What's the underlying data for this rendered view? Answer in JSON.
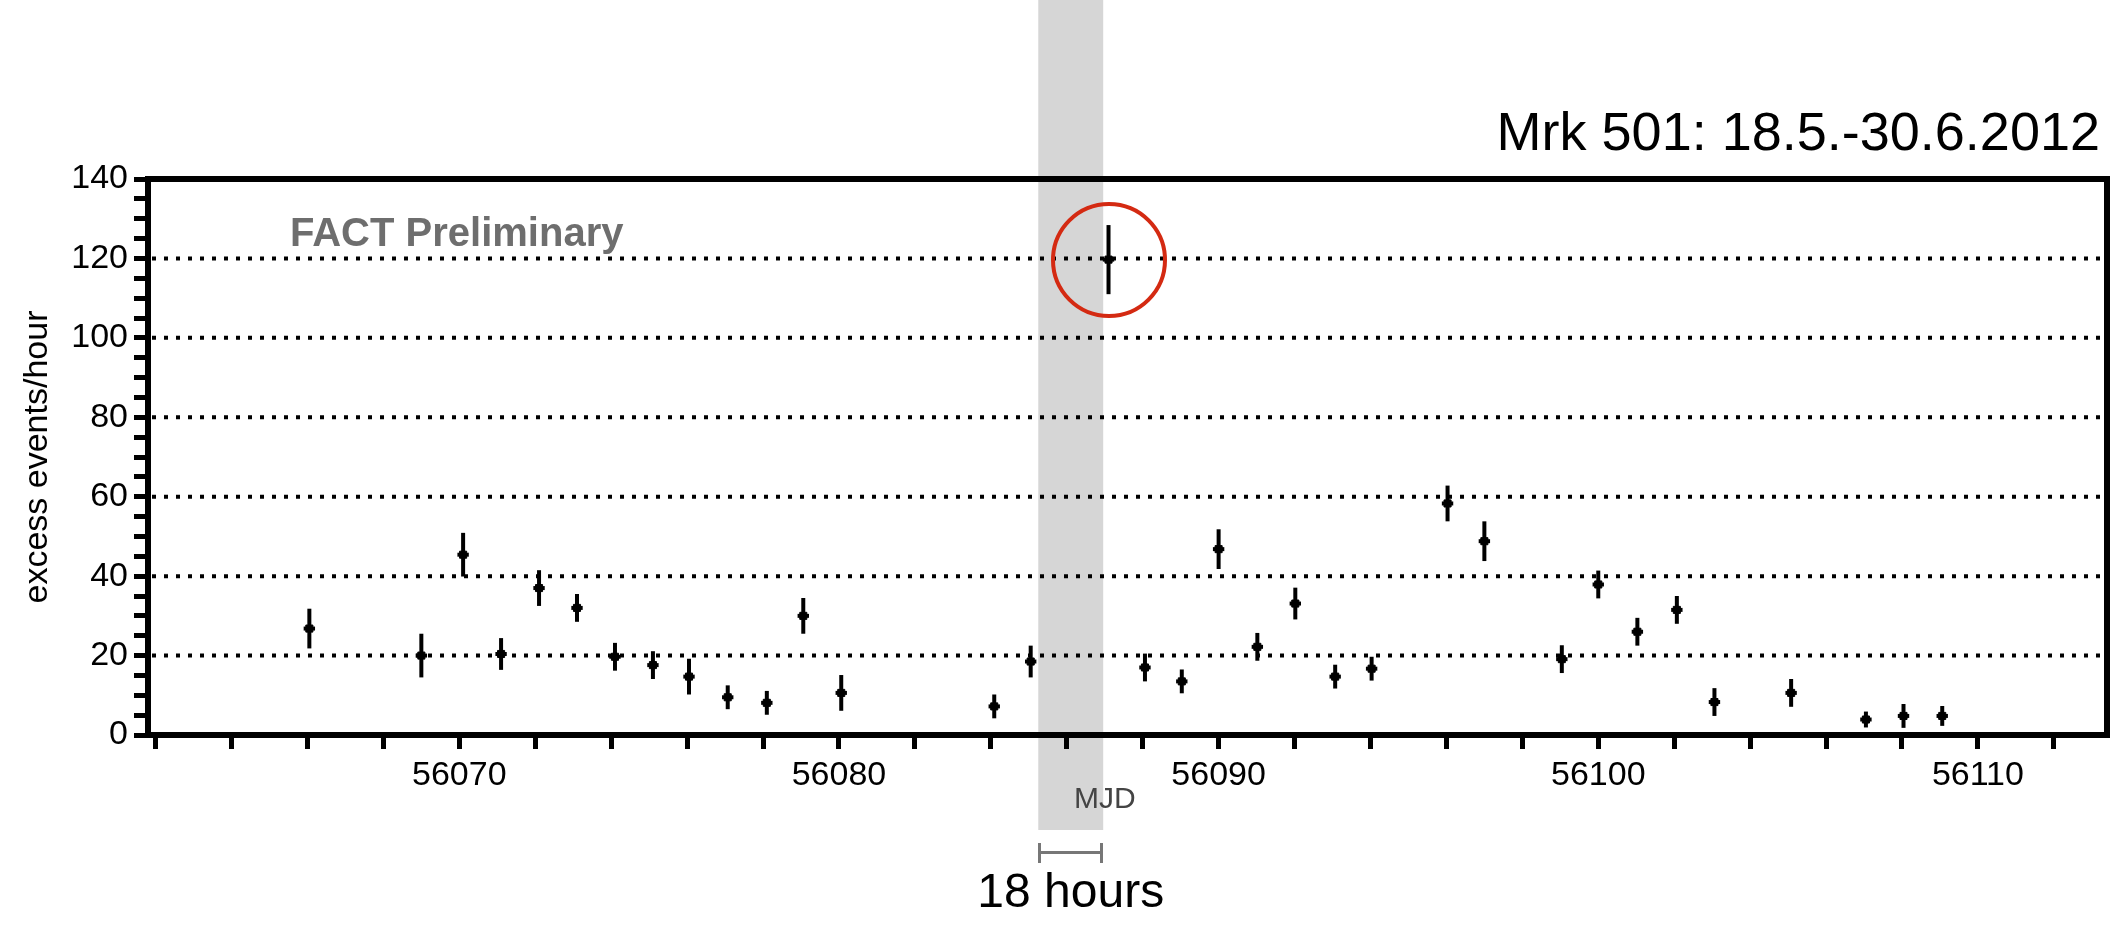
{
  "chart_data": {
    "type": "scatter",
    "title": "Mrk 501: 18.5.-30.6.2012",
    "xlabel": "MJD",
    "ylabel": "excess events/hour",
    "annotations": [
      "FACT Preliminary"
    ],
    "x": [
      56066.05,
      56069.0,
      56070.1,
      56071.1,
      56072.1,
      56073.1,
      56074.1,
      56075.1,
      56076.05,
      56077.07,
      56078.1,
      56079.06,
      56080.06,
      56084.09,
      56085.05,
      56087.1,
      56088.06,
      56089.03,
      56090.0,
      56091.02,
      56092.02,
      56093.07,
      56094.03,
      56096.03,
      56097.0,
      56099.04,
      56100.0,
      56101.03,
      56102.07,
      56103.06,
      56105.08,
      56107.05,
      56108.04,
      56109.06
    ],
    "values": [
      26.8,
      20,
      45.4,
      20.4,
      37,
      32,
      19.7,
      17.6,
      14.7,
      9.5,
      8.1,
      30,
      10.6,
      7.2,
      18.5,
      119.7,
      17,
      13.5,
      46.8,
      22.2,
      33.1,
      14.7,
      16.7,
      58.3,
      48.8,
      19.1,
      37.9,
      26,
      31.5,
      8.3,
      10.6,
      3.9,
      4.8,
      4.8
    ],
    "errors": [
      5,
      5.5,
      5.5,
      4,
      4.5,
      3.5,
      3.5,
      3.5,
      4.5,
      3,
      3,
      4.5,
      4.5,
      3,
      4,
      8.7,
      3.5,
      3,
      5,
      3.5,
      4,
      3,
      3,
      4.5,
      5,
      3.5,
      3.5,
      3.5,
      3.5,
      3.5,
      3.5,
      2,
      3,
      2.5
    ],
    "xerrors": [
      0.15,
      0.15,
      0.15,
      0.15,
      0.15,
      0.15,
      0.15,
      0.15,
      0.15,
      0.15,
      0.15,
      0.15,
      0.15,
      0.15,
      0.15,
      0.15,
      0.15,
      0.15,
      0.15,
      0.15,
      0.15,
      0.15,
      0.15,
      0.15,
      0.15,
      0.15,
      0.15,
      0.15,
      0.15,
      0.15,
      0.15,
      0.15,
      0.15,
      0.15
    ],
    "color": "#000000",
    "marker": "square",
    "grid": "y",
    "legend": false,
    "xlim": [
      56061.8,
      56113.4
    ],
    "xticks": [
      {
        "value": 56062,
        "label": null
      },
      {
        "value": 56064,
        "label": null
      },
      {
        "value": 56066,
        "label": null
      },
      {
        "value": 56068,
        "label": null
      },
      56070,
      {
        "value": 56072,
        "label": null
      },
      {
        "value": 56074,
        "label": null
      },
      {
        "value": 56076,
        "label": null
      },
      {
        "value": 56078,
        "label": null
      },
      56080,
      {
        "value": 56082,
        "label": null
      },
      {
        "value": 56084,
        "label": null
      },
      {
        "value": 56086,
        "label": null
      },
      {
        "value": 56088,
        "label": null
      },
      56090,
      {
        "value": 56092,
        "label": null
      },
      {
        "value": 56094,
        "label": null
      },
      {
        "value": 56096,
        "label": null
      },
      {
        "value": 56098,
        "label": null
      },
      56100,
      {
        "value": 56102,
        "label": null
      },
      {
        "value": 56104,
        "label": null
      },
      {
        "value": 56106,
        "label": null
      },
      {
        "value": 56108,
        "label": null
      },
      56110,
      {
        "value": 56112,
        "label": null
      }
    ],
    "ylim": [
      0,
      140
    ],
    "yticks": [
      0,
      {
        "value": 5,
        "label": null
      },
      {
        "value": 10,
        "label": null
      },
      {
        "value": 15,
        "label": null
      },
      20,
      {
        "value": 25,
        "label": null
      },
      {
        "value": 30,
        "label": null
      },
      {
        "value": 35,
        "label": null
      },
      40,
      {
        "value": 45,
        "label": null
      },
      {
        "value": 50,
        "label": null
      },
      {
        "value": 55,
        "label": null
      },
      60,
      {
        "value": 65,
        "label": null
      },
      {
        "value": 70,
        "label": null
      },
      {
        "value": 75,
        "label": null
      },
      80,
      {
        "value": 85,
        "label": null
      },
      {
        "value": 90,
        "label": null
      },
      {
        "value": 95,
        "label": null
      },
      100,
      {
        "value": 105,
        "label": null
      },
      {
        "value": 110,
        "label": null
      },
      {
        "value": 115,
        "label": null
      },
      120,
      {
        "value": 125,
        "label": null
      },
      {
        "value": 130,
        "label": null
      },
      {
        "value": 135,
        "label": null
      },
      140
    ],
    "bands": [
      {
        "axis": "x",
        "from": 56085.25,
        "to": 56086.96,
        "label": "18 hours",
        "color": "#d6d6d6"
      }
    ]
  }
}
